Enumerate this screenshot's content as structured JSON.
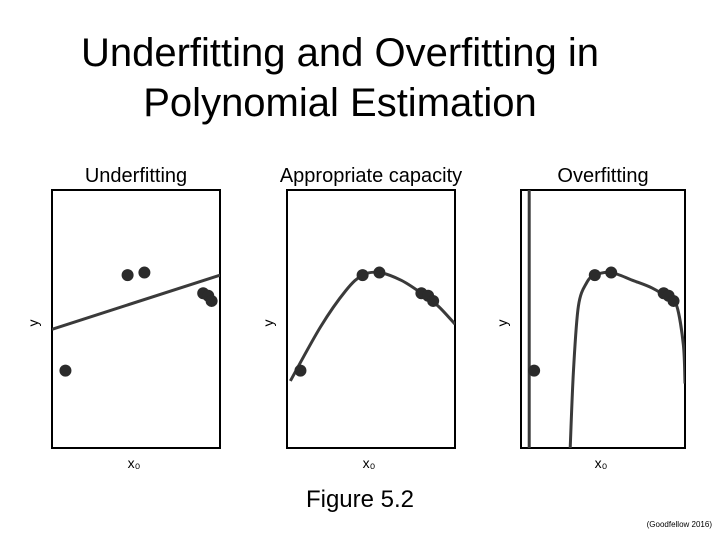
{
  "title_line1": "Underfitting and Overfitting in",
  "title_line2": "Polynomial Estimation",
  "caption": "Figure 5.2",
  "credit": "(Goodfellow 2016)",
  "colors": {
    "curve": "#3a3a3a",
    "point": "#2b2b2b",
    "frame": "#000000"
  },
  "chart_data": [
    {
      "type": "scatter",
      "title": "Underfitting",
      "xlabel": "x₀",
      "ylabel": "y",
      "x": [
        0.08,
        0.45,
        0.55,
        0.9,
        0.93,
        0.95
      ],
      "y": [
        0.3,
        0.67,
        0.68,
        0.6,
        0.59,
        0.57
      ],
      "fit_degree": 1,
      "fit_endpoints": [
        [
          0.0,
          0.46
        ],
        [
          1.0,
          0.67
        ]
      ],
      "xlim": [
        0,
        1
      ],
      "ylim": [
        0,
        1
      ]
    },
    {
      "type": "scatter",
      "title": "Appropriate capacity",
      "xlabel": "x₀",
      "ylabel": "y",
      "x": [
        0.08,
        0.45,
        0.55,
        0.8,
        0.84,
        0.87
      ],
      "y": [
        0.3,
        0.67,
        0.68,
        0.6,
        0.59,
        0.57
      ],
      "fit_degree": 2,
      "fit_curve": [
        [
          0.02,
          0.26
        ],
        [
          0.2,
          0.47
        ],
        [
          0.35,
          0.61
        ],
        [
          0.45,
          0.67
        ],
        [
          0.55,
          0.68
        ],
        [
          0.68,
          0.65
        ],
        [
          0.8,
          0.6
        ],
        [
          0.9,
          0.55
        ],
        [
          1.0,
          0.48
        ]
      ],
      "xlim": [
        0,
        1
      ],
      "ylim": [
        0,
        1
      ]
    },
    {
      "type": "scatter",
      "title": "Overfitting",
      "xlabel": "x₀",
      "ylabel": "y",
      "x": [
        0.08,
        0.45,
        0.55,
        0.87,
        0.9,
        0.93
      ],
      "y": [
        0.3,
        0.67,
        0.68,
        0.6,
        0.59,
        0.57
      ],
      "fit_degree": 9,
      "fit_curve": [
        [
          0.3,
          0.0
        ],
        [
          0.32,
          0.3
        ],
        [
          0.35,
          0.55
        ],
        [
          0.4,
          0.64
        ],
        [
          0.45,
          0.67
        ],
        [
          0.55,
          0.68
        ],
        [
          0.68,
          0.65
        ],
        [
          0.8,
          0.62
        ],
        [
          0.9,
          0.58
        ],
        [
          0.95,
          0.55
        ],
        [
          0.99,
          0.4
        ],
        [
          1.0,
          0.25
        ]
      ],
      "vertical_line_x": 0.05,
      "xlim": [
        0,
        1
      ],
      "ylim": [
        0,
        1
      ]
    }
  ]
}
